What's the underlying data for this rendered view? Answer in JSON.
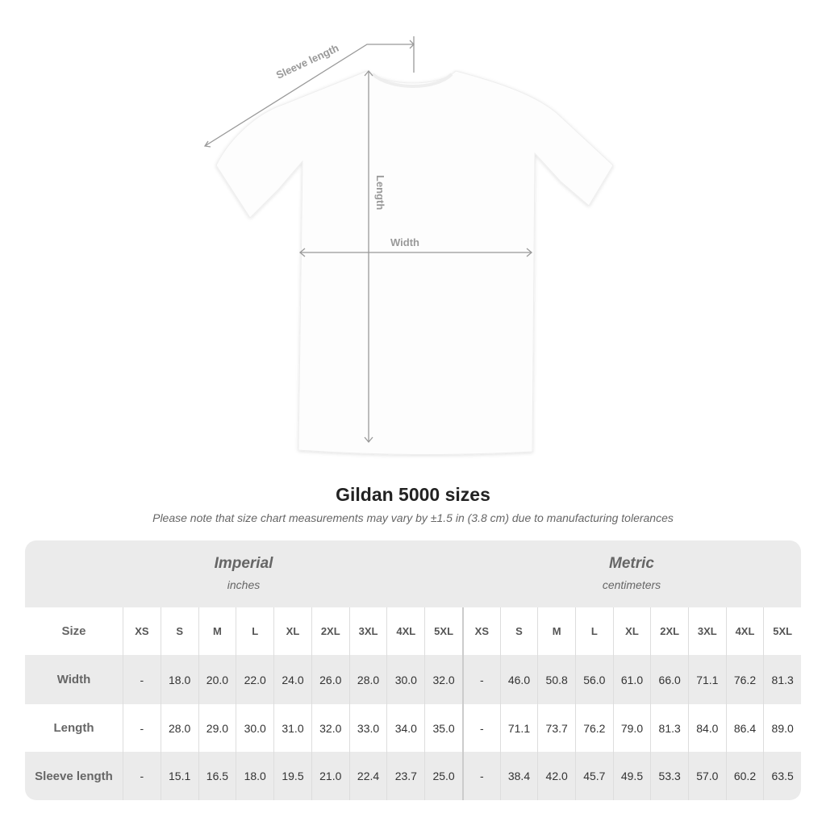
{
  "diagram": {
    "labels": {
      "sleeve": "Sleeve length",
      "length": "Length",
      "width": "Width"
    }
  },
  "title": "Gildan 5000 sizes",
  "note": "Please note that size chart measurements may vary by ±1.5 in (3.8 cm) due to manufacturing tolerances",
  "groups": {
    "imperial": {
      "title": "Imperial",
      "unit": "inches"
    },
    "metric": {
      "title": "Metric",
      "unit": "centimeters"
    }
  },
  "size_header": "Size",
  "sizes": [
    "XS",
    "S",
    "M",
    "L",
    "XL",
    "2XL",
    "3XL",
    "4XL",
    "5XL"
  ],
  "rows": [
    {
      "label": "Width",
      "imperial": [
        "-",
        "18.0",
        "20.0",
        "22.0",
        "24.0",
        "26.0",
        "28.0",
        "30.0",
        "32.0"
      ],
      "metric": [
        "-",
        "46.0",
        "50.8",
        "56.0",
        "61.0",
        "66.0",
        "71.1",
        "76.2",
        "81.3"
      ]
    },
    {
      "label": "Length",
      "imperial": [
        "-",
        "28.0",
        "29.0",
        "30.0",
        "31.0",
        "32.0",
        "33.0",
        "34.0",
        "35.0"
      ],
      "metric": [
        "-",
        "71.1",
        "73.7",
        "76.2",
        "79.0",
        "81.3",
        "84.0",
        "86.4",
        "89.0"
      ]
    },
    {
      "label": "Sleeve length",
      "imperial": [
        "-",
        "15.1",
        "16.5",
        "18.0",
        "19.5",
        "21.0",
        "22.4",
        "23.7",
        "25.0"
      ],
      "metric": [
        "-",
        "38.4",
        "42.0",
        "45.7",
        "49.5",
        "53.3",
        "57.0",
        "60.2",
        "63.5"
      ]
    }
  ],
  "colors": {
    "header_bg": "#ebebeb",
    "measure_line": "#999999",
    "text": "#333333"
  }
}
